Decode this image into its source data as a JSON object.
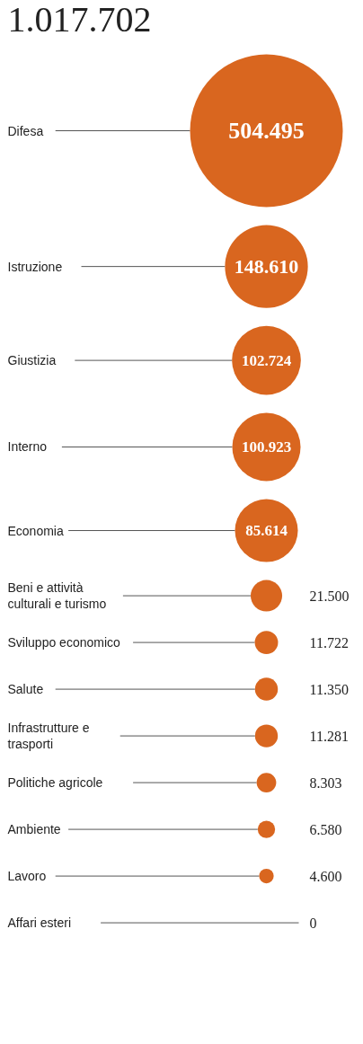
{
  "chart_data": {
    "type": "other",
    "title": "1.017.702",
    "color": "#d9661f",
    "categories": [
      "Difesa",
      "Istruzione",
      "Giustizia",
      "Interno",
      "Economia",
      "Beni e attività culturali e turismo",
      "Sviluppo economico",
      "Salute",
      "Infrastrutture e trasporti",
      "Politiche agricole",
      "Ambiente",
      "Lavoro",
      "Affari esteri"
    ],
    "values": [
      504495,
      148610,
      102724,
      100923,
      85614,
      21500,
      11722,
      11350,
      11281,
      8303,
      6580,
      4600,
      0
    ],
    "value_labels": [
      "504.495",
      "148.610",
      "102.724",
      "100.923",
      "85.614",
      "21.500",
      "11.722",
      "11.350",
      "11.281",
      "8.303",
      "6.580",
      "4.600",
      "0"
    ]
  }
}
